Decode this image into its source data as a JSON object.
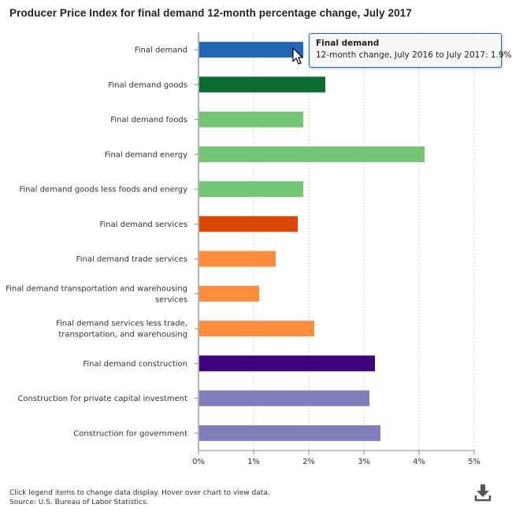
{
  "title": "Producer Price Index for final demand 12-month percentage change, July 2017",
  "tooltip": {
    "title": "Final demand",
    "prefix": "12-month change, July 2016 to July 2017: ",
    "value": "1.9%"
  },
  "footer": {
    "note": "Click legend items to change data display. Hover over chart to view data.",
    "source": "Source: U.S. Bureau of Labor Statistics."
  },
  "icons": {
    "download": "download-icon",
    "cursor": "mouse-pointer-icon"
  },
  "chart_data": {
    "type": "bar",
    "orientation": "horizontal",
    "title": "Producer Price Index for final demand 12-month percentage change, July 2017",
    "xlabel": "",
    "ylabel": "",
    "xlim": [
      0,
      5
    ],
    "ticks": [
      "0%",
      "1%",
      "2%",
      "3%",
      "4%",
      "5%"
    ],
    "grid": true,
    "categories": [
      [
        "Final demand"
      ],
      [
        "Final demand goods"
      ],
      [
        "Final demand foods"
      ],
      [
        "Final demand energy"
      ],
      [
        "Final demand goods less foods and energy"
      ],
      [
        "Final demand services"
      ],
      [
        "Final demand trade services"
      ],
      [
        "Final demand transportation and warehousing",
        "services"
      ],
      [
        "Final demand services less trade,",
        "transportation, and warehousing"
      ],
      [
        "Final demand construction"
      ],
      [
        "Construction for private capital investment"
      ],
      [
        "Construction for government"
      ]
    ],
    "values": [
      1.9,
      2.3,
      1.9,
      4.1,
      1.9,
      1.8,
      1.4,
      1.1,
      2.1,
      3.2,
      3.1,
      3.3
    ],
    "colors": [
      "#2166b3",
      "#0b6b32",
      "#74c476",
      "#74c476",
      "#74c476",
      "#d94801",
      "#fd8d3c",
      "#fd8d3c",
      "#fd8d3c",
      "#3f007d",
      "#807dba",
      "#807dba"
    ]
  }
}
